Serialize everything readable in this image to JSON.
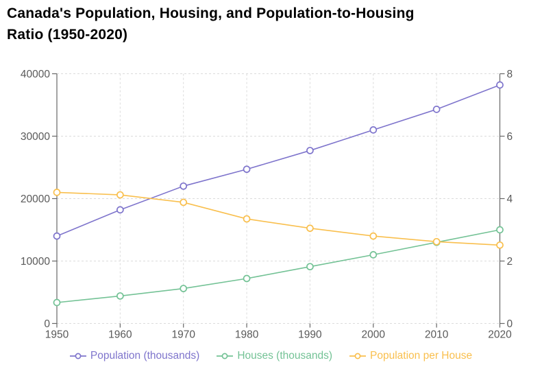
{
  "header": {
    "title_line1": "Canada's Population, Housing, and Population-to-Housing",
    "title_line2": "Ratio (1950-2020)"
  },
  "chart_data": {
    "type": "line",
    "title": "Canada's Population, Housing, and Population-to-Housing Ratio (1950-2020)",
    "x_labels": [
      "1950",
      "1960",
      "1970",
      "1980",
      "1990",
      "2000",
      "2010",
      "2020"
    ],
    "series": [
      {
        "name": "Population (thousands)",
        "axis": "left",
        "color": "#7E74CC",
        "marker": "open-circle",
        "values": [
          14000,
          18200,
          22000,
          24700,
          27700,
          31000,
          34300,
          38200
        ]
      },
      {
        "name": "Houses (thousands)",
        "axis": "left",
        "color": "#73C295",
        "marker": "open-circle",
        "values": [
          3350,
          4400,
          5600,
          7200,
          9100,
          11000,
          13000,
          15000
        ]
      },
      {
        "name": "Population per House",
        "axis": "right",
        "color": "#F9BF4D",
        "marker": "open-circle",
        "values": [
          4.2,
          4.12,
          3.88,
          3.35,
          3.05,
          2.8,
          2.62,
          2.51
        ]
      }
    ],
    "left_axis": {
      "min": 0,
      "max": 40000,
      "ticks": [
        "0",
        "10000",
        "20000",
        "30000",
        "40000"
      ]
    },
    "right_axis": {
      "min": 0,
      "max": 8,
      "ticks": [
        "0",
        "2",
        "4",
        "6",
        "8"
      ]
    },
    "grid": true,
    "grid_style": "dashed",
    "legend_position": "bottom"
  },
  "style": {
    "axis_line_color": "#666666",
    "tick_label_color": "#595959",
    "grid_color": "#DBDBDB",
    "background": "#FFFFFF",
    "title_color": "#000000"
  }
}
